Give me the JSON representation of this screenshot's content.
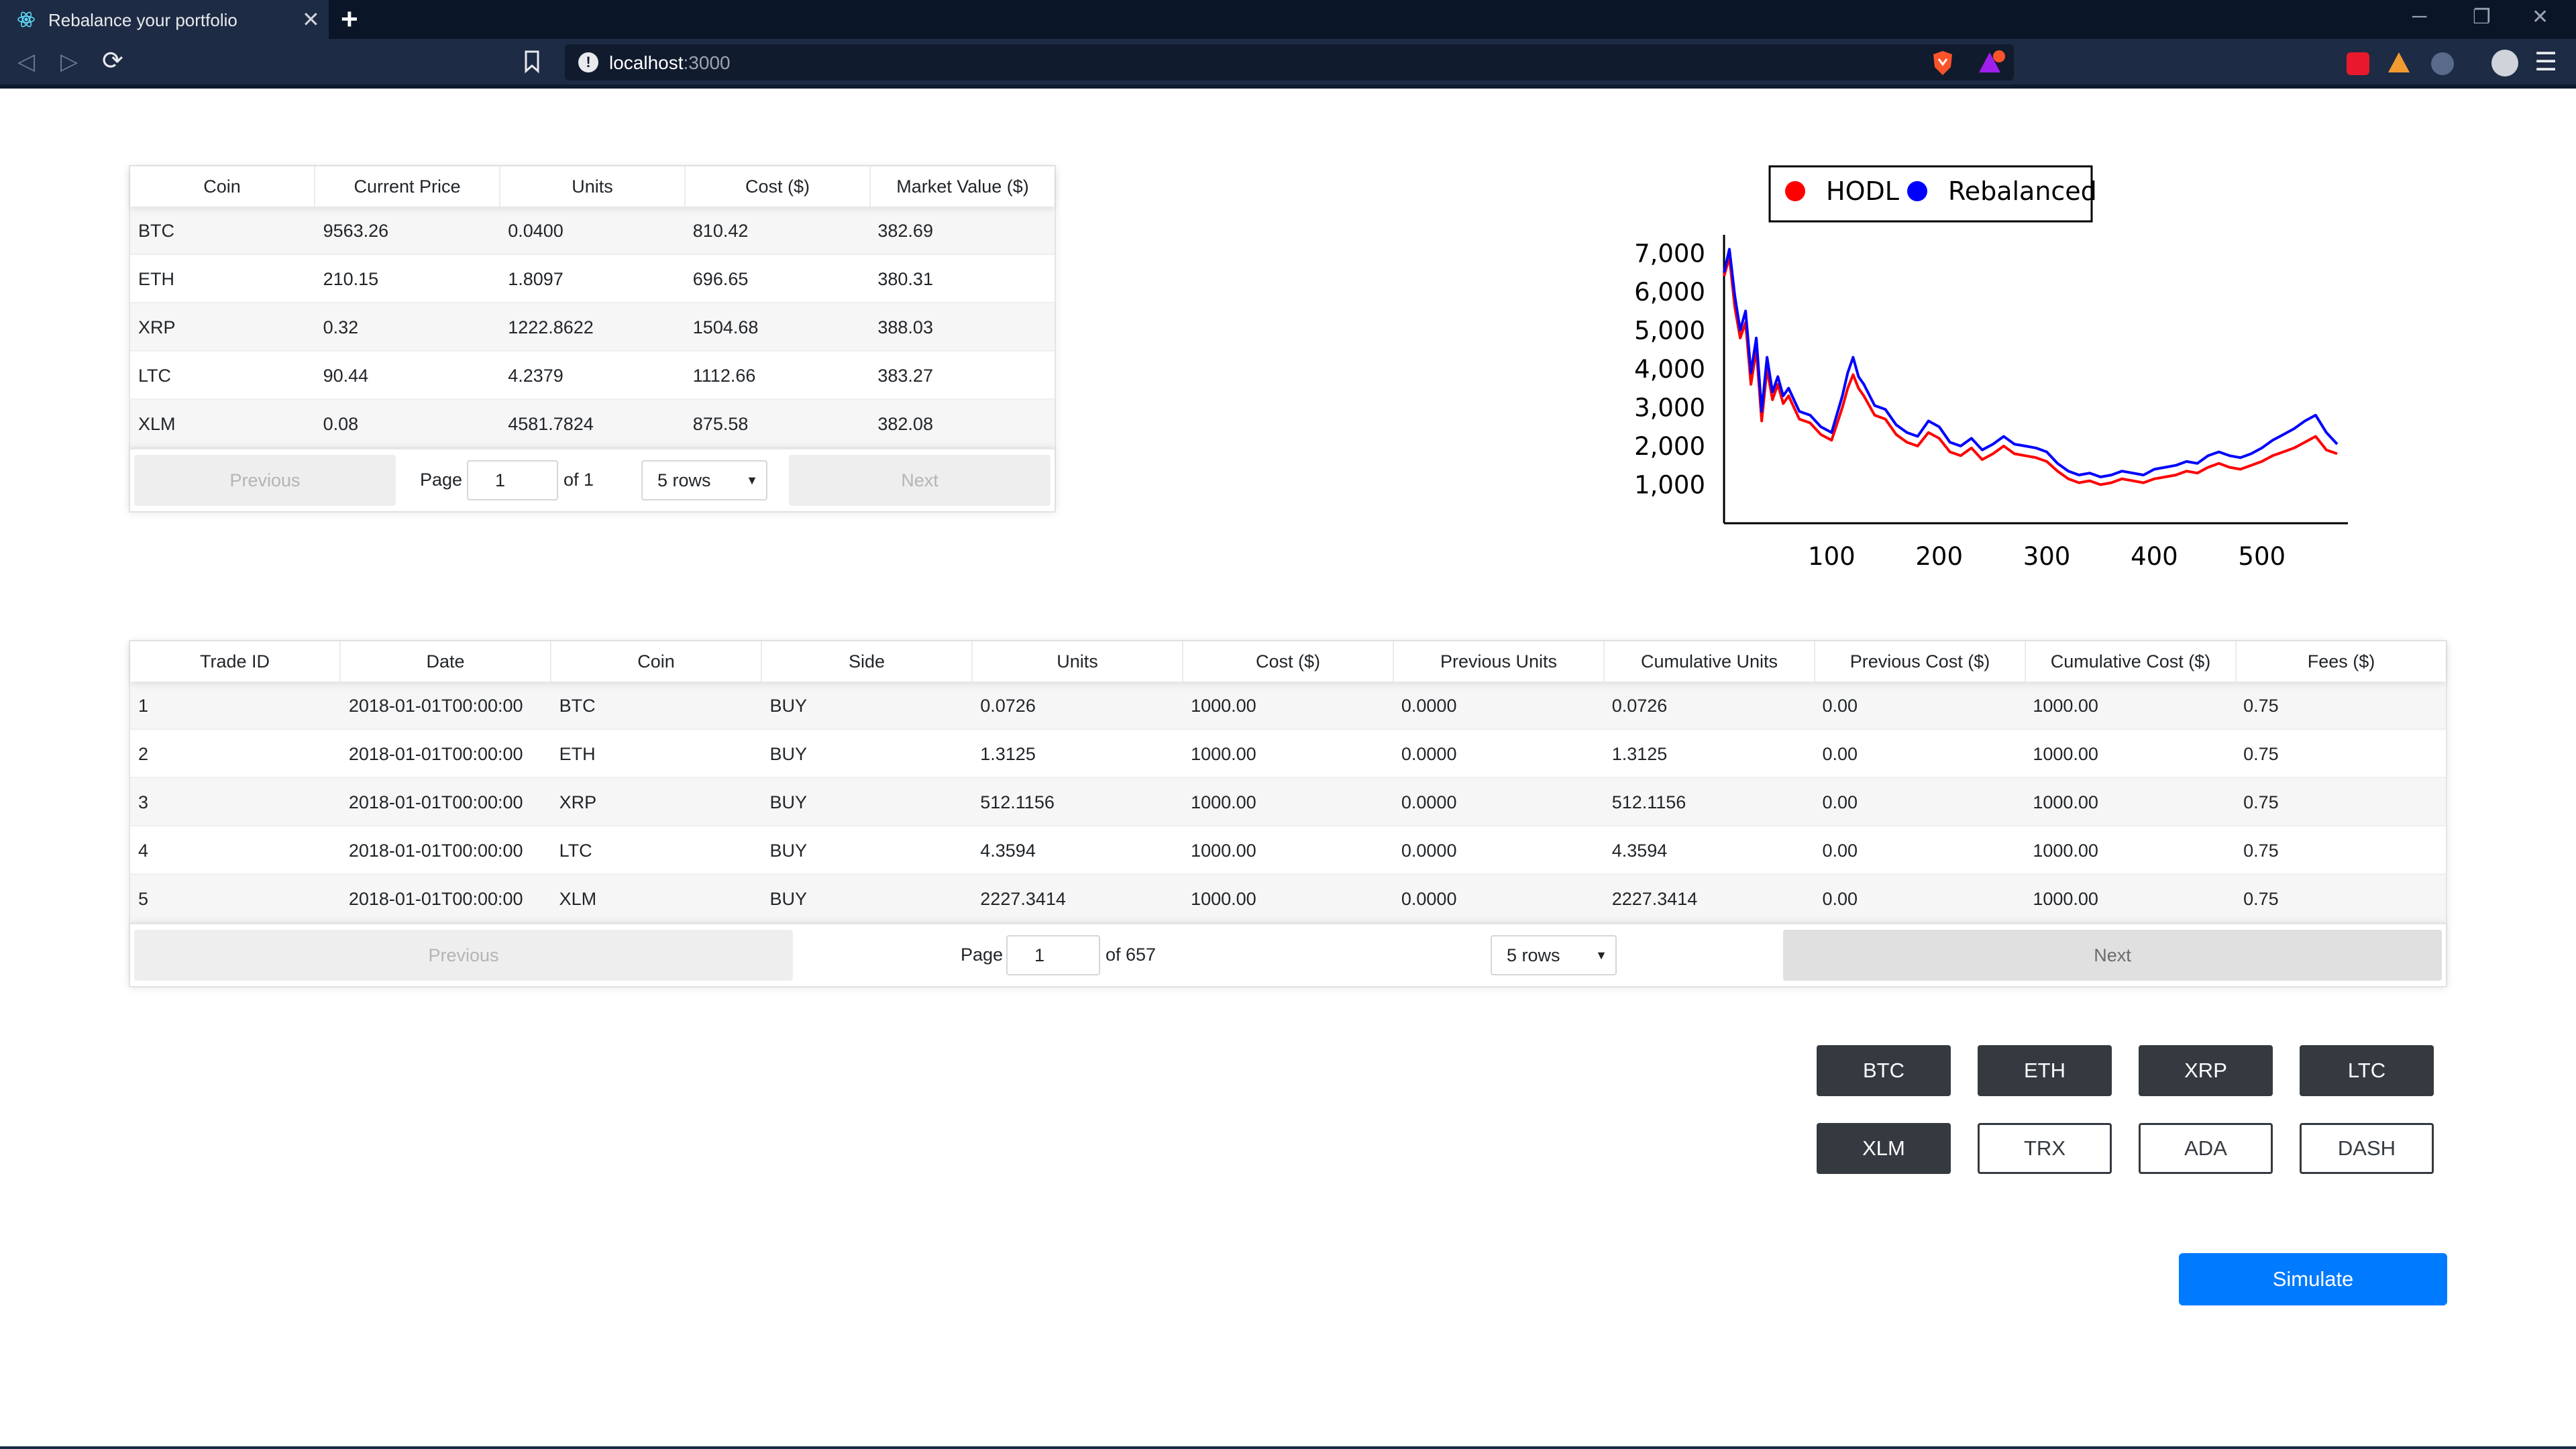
{
  "browser": {
    "tab_title": "Rebalance your portfolio",
    "url_host": "localhost",
    "url_port": ":3000"
  },
  "portfolio_table": {
    "columns": [
      "Coin",
      "Current Price",
      "Units",
      "Cost ($)",
      "Market Value ($)"
    ],
    "rows": [
      [
        "BTC",
        "9563.26",
        "0.0400",
        "810.42",
        "382.69"
      ],
      [
        "ETH",
        "210.15",
        "1.8097",
        "696.65",
        "380.31"
      ],
      [
        "XRP",
        "0.32",
        "1222.8622",
        "1504.68",
        "388.03"
      ],
      [
        "LTC",
        "90.44",
        "4.2379",
        "1112.66",
        "383.27"
      ],
      [
        "XLM",
        "0.08",
        "4581.7824",
        "875.58",
        "382.08"
      ]
    ],
    "pagination": {
      "previous": "Previous",
      "page_label": "Page",
      "page_value": "1",
      "of_label": "of 1",
      "rows_select": "5 rows",
      "next": "Next"
    }
  },
  "trades_table": {
    "columns": [
      "Trade ID",
      "Date",
      "Coin",
      "Side",
      "Units",
      "Cost ($)",
      "Previous Units",
      "Cumulative Units",
      "Previous Cost ($)",
      "Cumulative Cost ($)",
      "Fees ($)"
    ],
    "rows": [
      [
        "1",
        "2018-01-01T00:00:00",
        "BTC",
        "BUY",
        "0.0726",
        "1000.00",
        "0.0000",
        "0.0726",
        "0.00",
        "1000.00",
        "0.75"
      ],
      [
        "2",
        "2018-01-01T00:00:00",
        "ETH",
        "BUY",
        "1.3125",
        "1000.00",
        "0.0000",
        "1.3125",
        "0.00",
        "1000.00",
        "0.75"
      ],
      [
        "3",
        "2018-01-01T00:00:00",
        "XRP",
        "BUY",
        "512.1156",
        "1000.00",
        "0.0000",
        "512.1156",
        "0.00",
        "1000.00",
        "0.75"
      ],
      [
        "4",
        "2018-01-01T00:00:00",
        "LTC",
        "BUY",
        "4.3594",
        "1000.00",
        "0.0000",
        "4.3594",
        "0.00",
        "1000.00",
        "0.75"
      ],
      [
        "5",
        "2018-01-01T00:00:00",
        "XLM",
        "BUY",
        "2227.3414",
        "1000.00",
        "0.0000",
        "2227.3414",
        "0.00",
        "1000.00",
        "0.75"
      ]
    ],
    "pagination": {
      "previous": "Previous",
      "page_label": "Page",
      "page_value": "1",
      "of_label": "of 657",
      "rows_select": "5 rows",
      "next": "Next"
    }
  },
  "coins": [
    {
      "label": "BTC",
      "selected": true
    },
    {
      "label": "ETH",
      "selected": true
    },
    {
      "label": "XRP",
      "selected": true
    },
    {
      "label": "LTC",
      "selected": true
    },
    {
      "label": "XLM",
      "selected": true
    },
    {
      "label": "TRX",
      "selected": false
    },
    {
      "label": "ADA",
      "selected": false
    },
    {
      "label": "DASH",
      "selected": false
    }
  ],
  "simulate_label": "Simulate",
  "colors": {
    "hodl": "#ff0000",
    "rebalanced": "#0000ff",
    "primary": "#007bff",
    "dark": "#343a40"
  },
  "chart_data": {
    "type": "line",
    "title": "",
    "xlabel": "",
    "ylabel": "",
    "legend": [
      "HODL",
      "Rebalanced"
    ],
    "legend_position": "top-center",
    "xlim": [
      0,
      580
    ],
    "ylim": [
      0,
      7300
    ],
    "xticks": [
      100,
      200,
      300,
      400,
      500
    ],
    "yticks": [
      1000,
      2000,
      3000,
      4000,
      5000,
      6000,
      7000
    ],
    "xtick_labels": [
      "100",
      "200",
      "300",
      "400",
      "500"
    ],
    "ytick_labels": [
      "1,000",
      "2,000",
      "3,000",
      "4,000",
      "5,000",
      "6,000",
      "7,000"
    ],
    "grid": false,
    "series": [
      {
        "name": "HODL",
        "color": "#ff0000",
        "x": [
          0,
          5,
          10,
          15,
          20,
          25,
          30,
          35,
          40,
          45,
          50,
          55,
          60,
          70,
          80,
          90,
          100,
          110,
          115,
          120,
          125,
          130,
          140,
          150,
          160,
          170,
          180,
          190,
          200,
          210,
          220,
          230,
          240,
          250,
          260,
          270,
          280,
          290,
          300,
          310,
          320,
          330,
          340,
          350,
          360,
          370,
          380,
          390,
          400,
          410,
          420,
          430,
          440,
          450,
          460,
          470,
          480,
          490,
          500,
          510,
          520,
          530,
          540,
          550,
          560,
          570
        ],
        "values": [
          6400,
          6900,
          5600,
          4800,
          5200,
          3600,
          4500,
          2650,
          4000,
          3200,
          3600,
          3100,
          3300,
          2700,
          2600,
          2300,
          2150,
          3000,
          3500,
          3850,
          3500,
          3300,
          2800,
          2700,
          2300,
          2100,
          2000,
          2350,
          2200,
          1850,
          1750,
          1950,
          1650,
          1800,
          2000,
          1800,
          1750,
          1700,
          1600,
          1350,
          1150,
          1050,
          1100,
          1000,
          1050,
          1150,
          1100,
          1050,
          1150,
          1200,
          1250,
          1350,
          1300,
          1450,
          1550,
          1450,
          1400,
          1500,
          1600,
          1750,
          1850,
          1950,
          2100,
          2250,
          1900,
          1800
        ]
      },
      {
        "name": "Rebalanced",
        "color": "#0000ff",
        "x": [
          0,
          5,
          10,
          15,
          20,
          25,
          30,
          35,
          40,
          45,
          50,
          55,
          60,
          70,
          80,
          90,
          100,
          110,
          115,
          120,
          125,
          130,
          140,
          150,
          160,
          170,
          180,
          190,
          200,
          210,
          220,
          230,
          240,
          250,
          260,
          270,
          280,
          290,
          300,
          310,
          320,
          330,
          340,
          350,
          360,
          370,
          380,
          390,
          400,
          410,
          420,
          430,
          440,
          450,
          460,
          470,
          480,
          490,
          500,
          510,
          520,
          530,
          540,
          550,
          560,
          570
        ],
        "values": [
          6500,
          7100,
          5900,
          5000,
          5500,
          3900,
          4800,
          2900,
          4300,
          3400,
          3800,
          3300,
          3500,
          2900,
          2800,
          2500,
          2350,
          3300,
          3900,
          4300,
          3800,
          3600,
          3050,
          2950,
          2550,
          2350,
          2250,
          2650,
          2500,
          2100,
          2000,
          2200,
          1900,
          2050,
          2250,
          2050,
          2000,
          1950,
          1850,
          1550,
          1350,
          1250,
          1300,
          1200,
          1250,
          1350,
          1300,
          1250,
          1400,
          1450,
          1500,
          1600,
          1550,
          1750,
          1850,
          1750,
          1700,
          1800,
          1950,
          2150,
          2300,
          2450,
          2650,
          2800,
          2350,
          2050
        ]
      }
    ]
  }
}
